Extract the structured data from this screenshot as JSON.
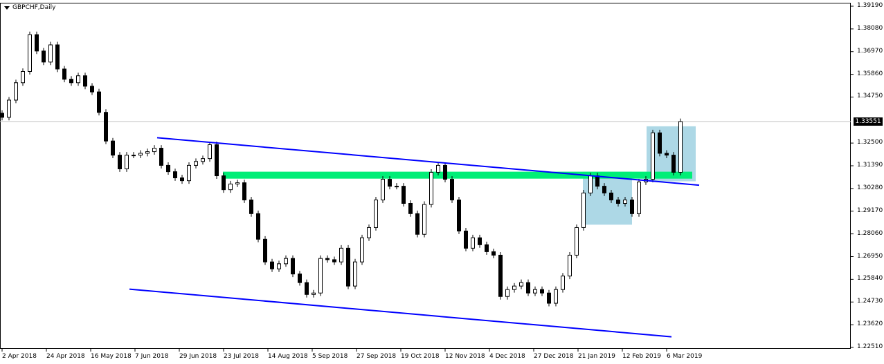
{
  "window": {
    "title": "GBPCHF,Daily"
  },
  "chart_data": {
    "type": "candlestick",
    "symbol": "GBPCHF",
    "timeframe": "Daily",
    "ylim": [
      1.2251,
      1.3919
    ],
    "y_ticks": [
      "1.39190",
      "1.38080",
      "1.36970",
      "1.35860",
      "1.34750",
      "1.32500",
      "1.31390",
      "1.30280",
      "1.29170",
      "1.28060",
      "1.26950",
      "1.25840",
      "1.24730",
      "1.23620",
      "1.22510"
    ],
    "x_ticks": [
      "2 Apr 2018",
      "24 Apr 2018",
      "16 May 2018",
      "7 Jun 2018",
      "29 Jun 2018",
      "23 Jul 2018",
      "14 Aug 2018",
      "5 Sep 2018",
      "27 Sep 2018",
      "19 Oct 2018",
      "12 Nov 2018",
      "4 Dec 2018",
      "27 Dec 2018",
      "21 Jan 2019",
      "12 Feb 2019",
      "6 Mar 2019"
    ],
    "current_price": "1.33551",
    "colors": {
      "bull": "#ffffff",
      "bear": "#000000",
      "trendline": "#0000ff",
      "zone": "#00ee77",
      "box": "#add8e6",
      "grid_price_line": "#c0c0c0"
    },
    "closes": [
      1.3376,
      1.346,
      1.3545,
      1.36,
      1.378,
      1.37,
      1.3646,
      1.373,
      1.3612,
      1.3562,
      1.3545,
      1.3579,
      1.3528,
      1.35,
      1.34,
      1.326,
      1.3191,
      1.3124,
      1.3191,
      1.3191,
      1.32,
      1.3208,
      1.3225,
      1.3141,
      1.311,
      1.308,
      1.3066,
      1.3141,
      1.316,
      1.3174,
      1.3242,
      1.309,
      1.3022,
      1.305,
      1.3056,
      1.2972,
      1.2905,
      1.278,
      1.2669,
      1.2635,
      1.266,
      1.2686,
      1.261,
      1.2568,
      1.251,
      1.2517,
      1.2686,
      1.268,
      1.2669,
      1.2736,
      1.2551,
      1.2669,
      1.2787,
      1.2837,
      1.2972,
      1.3073,
      1.3039,
      1.3039,
      1.2955,
      1.2905,
      1.2804,
      1.295,
      1.3107,
      1.3141,
      1.3073,
      1.2972,
      1.282,
      1.2736,
      1.2787,
      1.2753,
      1.2719,
      1.2702,
      1.25,
      1.2534,
      1.2551,
      1.2568,
      1.2517,
      1.2534,
      1.2517,
      1.2467,
      1.2534,
      1.26,
      1.2702,
      1.2837,
      1.3006,
      1.309,
      1.3039,
      1.3006,
      1.2972,
      1.2955,
      1.2972,
      1.2905,
      1.306,
      1.3073,
      1.33,
      1.32,
      1.3191,
      1.3107,
      1.3355
    ],
    "objects": {
      "trendlines": [
        {
          "start": [
            22.4,
            1.3276
          ],
          "end": [
            100.7,
            1.3044
          ]
        },
        {
          "start": [
            18.4,
            1.2536
          ],
          "end": [
            96.7,
            1.2303
          ]
        }
      ],
      "zone": {
        "from": 31.9,
        "to": 99.7,
        "top": 1.311,
        "bottom": 1.3076
      },
      "boxes": [
        {
          "from": 83.9,
          "to": 91.0,
          "top": 1.311,
          "bottom": 1.2851
        },
        {
          "from": 93.1,
          "to": 100.2,
          "top": 1.3332,
          "bottom": 1.3063
        }
      ]
    }
  }
}
